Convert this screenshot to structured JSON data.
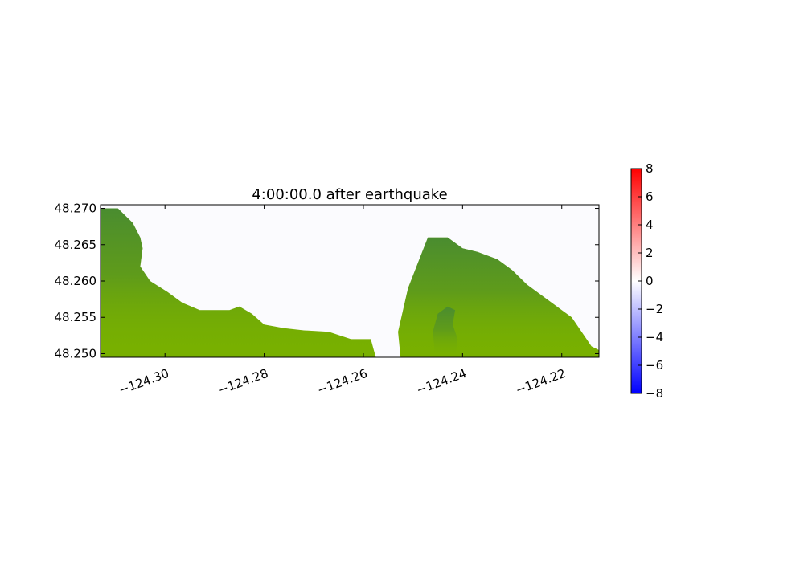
{
  "chart_data": {
    "type": "heatmap",
    "title": "4:00:00.0 after earthquake",
    "xlabel": "",
    "ylabel": "",
    "xlim": [
      -124.313,
      -124.2125
    ],
    "ylim": [
      48.2495,
      48.2705
    ],
    "x_ticks": [
      -124.3,
      -124.28,
      -124.26,
      -124.24,
      -124.22
    ],
    "x_tick_labels": [
      "−124.30",
      "−124.28",
      "−124.26",
      "−124.24",
      "−124.22"
    ],
    "y_ticks": [
      48.25,
      48.255,
      48.26,
      48.265,
      48.27
    ],
    "y_tick_labels": [
      "48.250",
      "48.255",
      "48.260",
      "48.265",
      "48.270"
    ],
    "grid": false,
    "colorbar": {
      "min": -8,
      "max": 8,
      "ticks": [
        -8,
        -6,
        -4,
        -2,
        0,
        2,
        4,
        6,
        8
      ],
      "tick_labels": [
        "−8",
        "−6",
        "−4",
        "−2",
        "0",
        "2",
        "4",
        "6",
        "8"
      ],
      "colors": [
        "#0000ff",
        "#ffffff",
        "#ff0000"
      ],
      "placement": "right"
    },
    "land_colors": {
      "light": "#78b000",
      "dark": "#3a8040"
    },
    "water_color": "#fbfbfe",
    "land_regions": [
      {
        "name": "west-shore",
        "outline": [
          [
            -124.313,
            48.2495
          ],
          [
            -124.313,
            48.27
          ],
          [
            -124.3095,
            48.27
          ],
          [
            -124.3065,
            48.268
          ],
          [
            -124.305,
            48.266
          ],
          [
            -124.3045,
            48.2645
          ],
          [
            -124.305,
            48.262
          ],
          [
            -124.303,
            48.26
          ],
          [
            -124.2995,
            48.2585
          ],
          [
            -124.2965,
            48.257
          ],
          [
            -124.293,
            48.256
          ],
          [
            -124.287,
            48.256
          ],
          [
            -124.285,
            48.2565
          ],
          [
            -124.2825,
            48.2555
          ],
          [
            -124.28,
            48.254
          ],
          [
            -124.276,
            48.2535
          ],
          [
            -124.272,
            48.2532
          ],
          [
            -124.267,
            48.253
          ],
          [
            -124.2625,
            48.252
          ],
          [
            -124.2585,
            48.252
          ],
          [
            -124.2575,
            48.2495
          ]
        ]
      },
      {
        "name": "east-shore",
        "outline": [
          [
            -124.2525,
            48.2495
          ],
          [
            -124.253,
            48.253
          ],
          [
            -124.251,
            48.259
          ],
          [
            -124.249,
            48.2625
          ],
          [
            -124.247,
            48.266
          ],
          [
            -124.243,
            48.266
          ],
          [
            -124.24,
            48.2645
          ],
          [
            -124.237,
            48.264
          ],
          [
            -124.233,
            48.263
          ],
          [
            -124.23,
            48.2615
          ],
          [
            -124.227,
            48.2595
          ],
          [
            -124.223,
            48.2575
          ],
          [
            -124.22,
            48.256
          ],
          [
            -124.218,
            48.255
          ],
          [
            -124.2165,
            48.2535
          ],
          [
            -124.215,
            48.252
          ],
          [
            -124.214,
            48.251
          ],
          [
            -124.2125,
            48.2505
          ],
          [
            -124.2125,
            48.2495
          ]
        ]
      },
      {
        "name": "spit",
        "outline": [
          [
            -124.2455,
            48.2495
          ],
          [
            -124.246,
            48.253
          ],
          [
            -124.245,
            48.2555
          ],
          [
            -124.243,
            48.2565
          ],
          [
            -124.2415,
            48.256
          ],
          [
            -124.242,
            48.254
          ],
          [
            -124.241,
            48.252
          ],
          [
            -124.2415,
            48.2495
          ]
        ]
      }
    ]
  }
}
